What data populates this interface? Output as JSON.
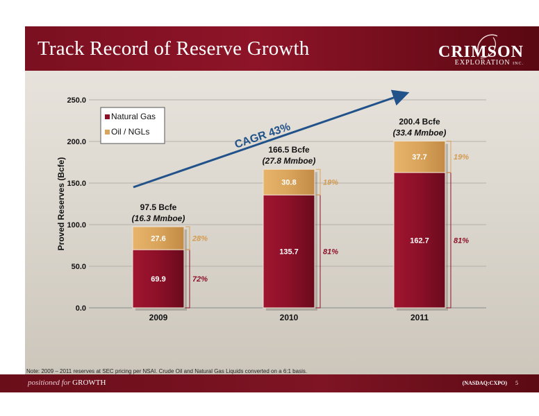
{
  "header": {
    "title": "Track Record of Reserve Growth",
    "logo_main": "CRIMSON",
    "logo_sub": "EXPLORATION",
    "logo_inc": "INC."
  },
  "note": "Note: 2009 – 2011 reserves at SEC pricing per NSAI. Crude Oil and Natural Gas Liquids converted on a 6:1 basis.",
  "footer": {
    "tagline_prefix": "positioned for",
    "tagline_word": "GROWTH",
    "ticker": "(NASDAQ:CXPO)",
    "page": "5"
  },
  "colors": {
    "natural_gas": "#8c1028",
    "oil_ngl": "#d9a45c",
    "arrow": "#21528a",
    "bracket": "#8c1028"
  },
  "chart_data": {
    "type": "bar",
    "stacked": true,
    "categories": [
      "2009",
      "2010",
      "2011"
    ],
    "series": [
      {
        "name": "Natural Gas",
        "values": [
          69.9,
          135.7,
          162.7
        ],
        "value_labels": [
          "69.9",
          "135.7",
          "162.7"
        ],
        "percents": [
          "72%",
          "81%",
          "81%"
        ]
      },
      {
        "name": "Oil / NGLs",
        "values": [
          27.6,
          30.8,
          37.7
        ],
        "value_labels": [
          "27.6",
          "30.8",
          "37.7"
        ],
        "percents": [
          "28%",
          "19%",
          "19%"
        ]
      }
    ],
    "totals": [
      {
        "line1": "97.5 Bcfe",
        "line2": "(16.3 Mmboe)"
      },
      {
        "line1": "166.5 Bcfe",
        "line2": "(27.8 Mmboe)"
      },
      {
        "line1": "200.4 Bcfe",
        "line2": "(33.4 Mmboe)"
      }
    ],
    "ylabel": "Proved Reserves (Bcfe)",
    "xlabel": "",
    "ylim": [
      0,
      250
    ],
    "yticks": [
      0,
      50,
      100,
      150,
      200,
      250
    ],
    "ytick_labels": [
      "0.0",
      "50.0",
      "100.0",
      "150.0",
      "200.0",
      "250.0"
    ],
    "grid": true,
    "legend_position": "top-left",
    "annotation": "CAGR 43%"
  }
}
